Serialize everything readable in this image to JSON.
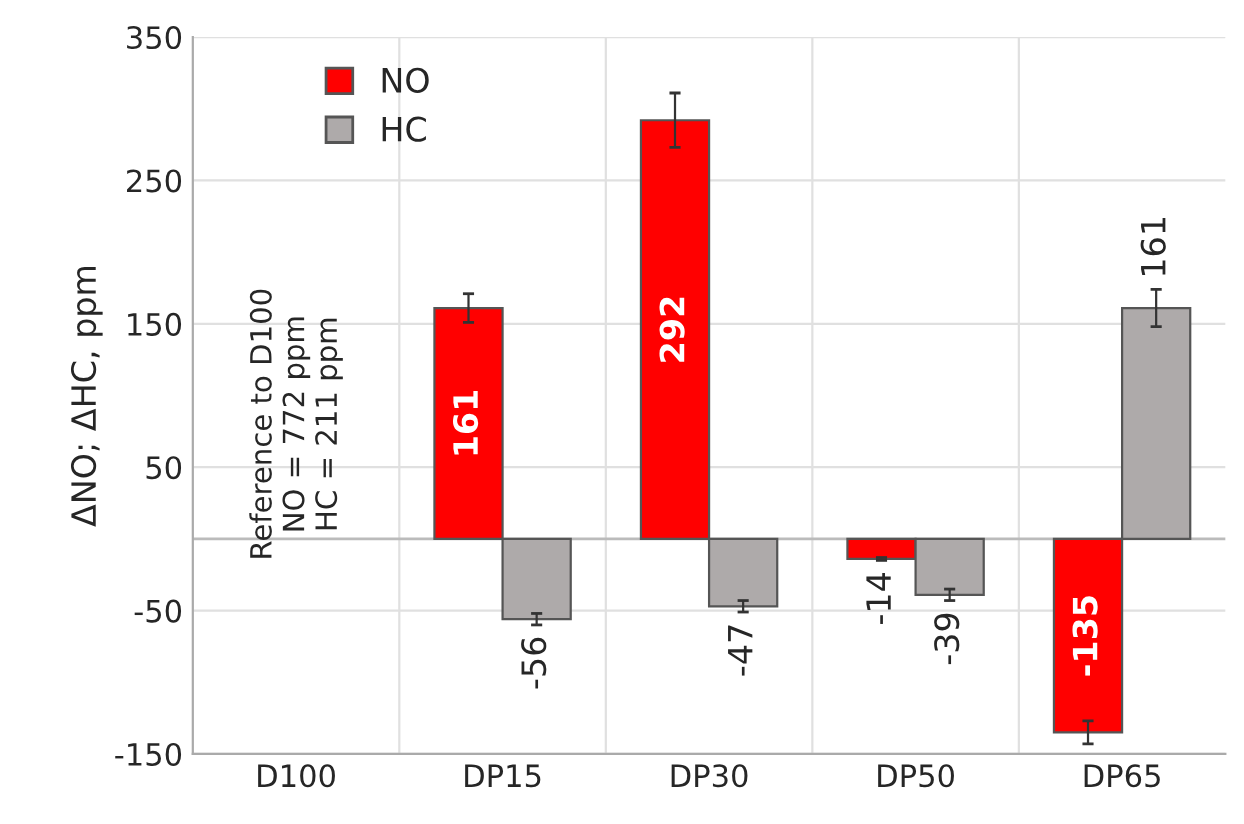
{
  "chart_data": {
    "type": "bar",
    "ylabel": "ΔNO; ΔHC, ppm",
    "categories": [
      "D100",
      "DP15",
      "DP30",
      "DP50",
      "DP65"
    ],
    "series": [
      {
        "name": "NO",
        "color": "#ff0000",
        "values": [
          null,
          161,
          292,
          -14,
          -135
        ],
        "errors": [
          null,
          10,
          19,
          1,
          8
        ]
      },
      {
        "name": "HC",
        "color": "#aeaaaa",
        "values": [
          null,
          -56,
          -47,
          -39,
          161
        ],
        "errors": [
          null,
          4,
          4,
          4,
          13
        ]
      }
    ],
    "ylim": [
      -150,
      350
    ],
    "yticks": [
      -150,
      -50,
      50,
      150,
      250,
      350
    ],
    "grid": true,
    "legend": "top left",
    "data_labels": true,
    "annotations": [
      "Reference to D100\nNO = 772 ppm\nHC = 211 ppm"
    ]
  }
}
